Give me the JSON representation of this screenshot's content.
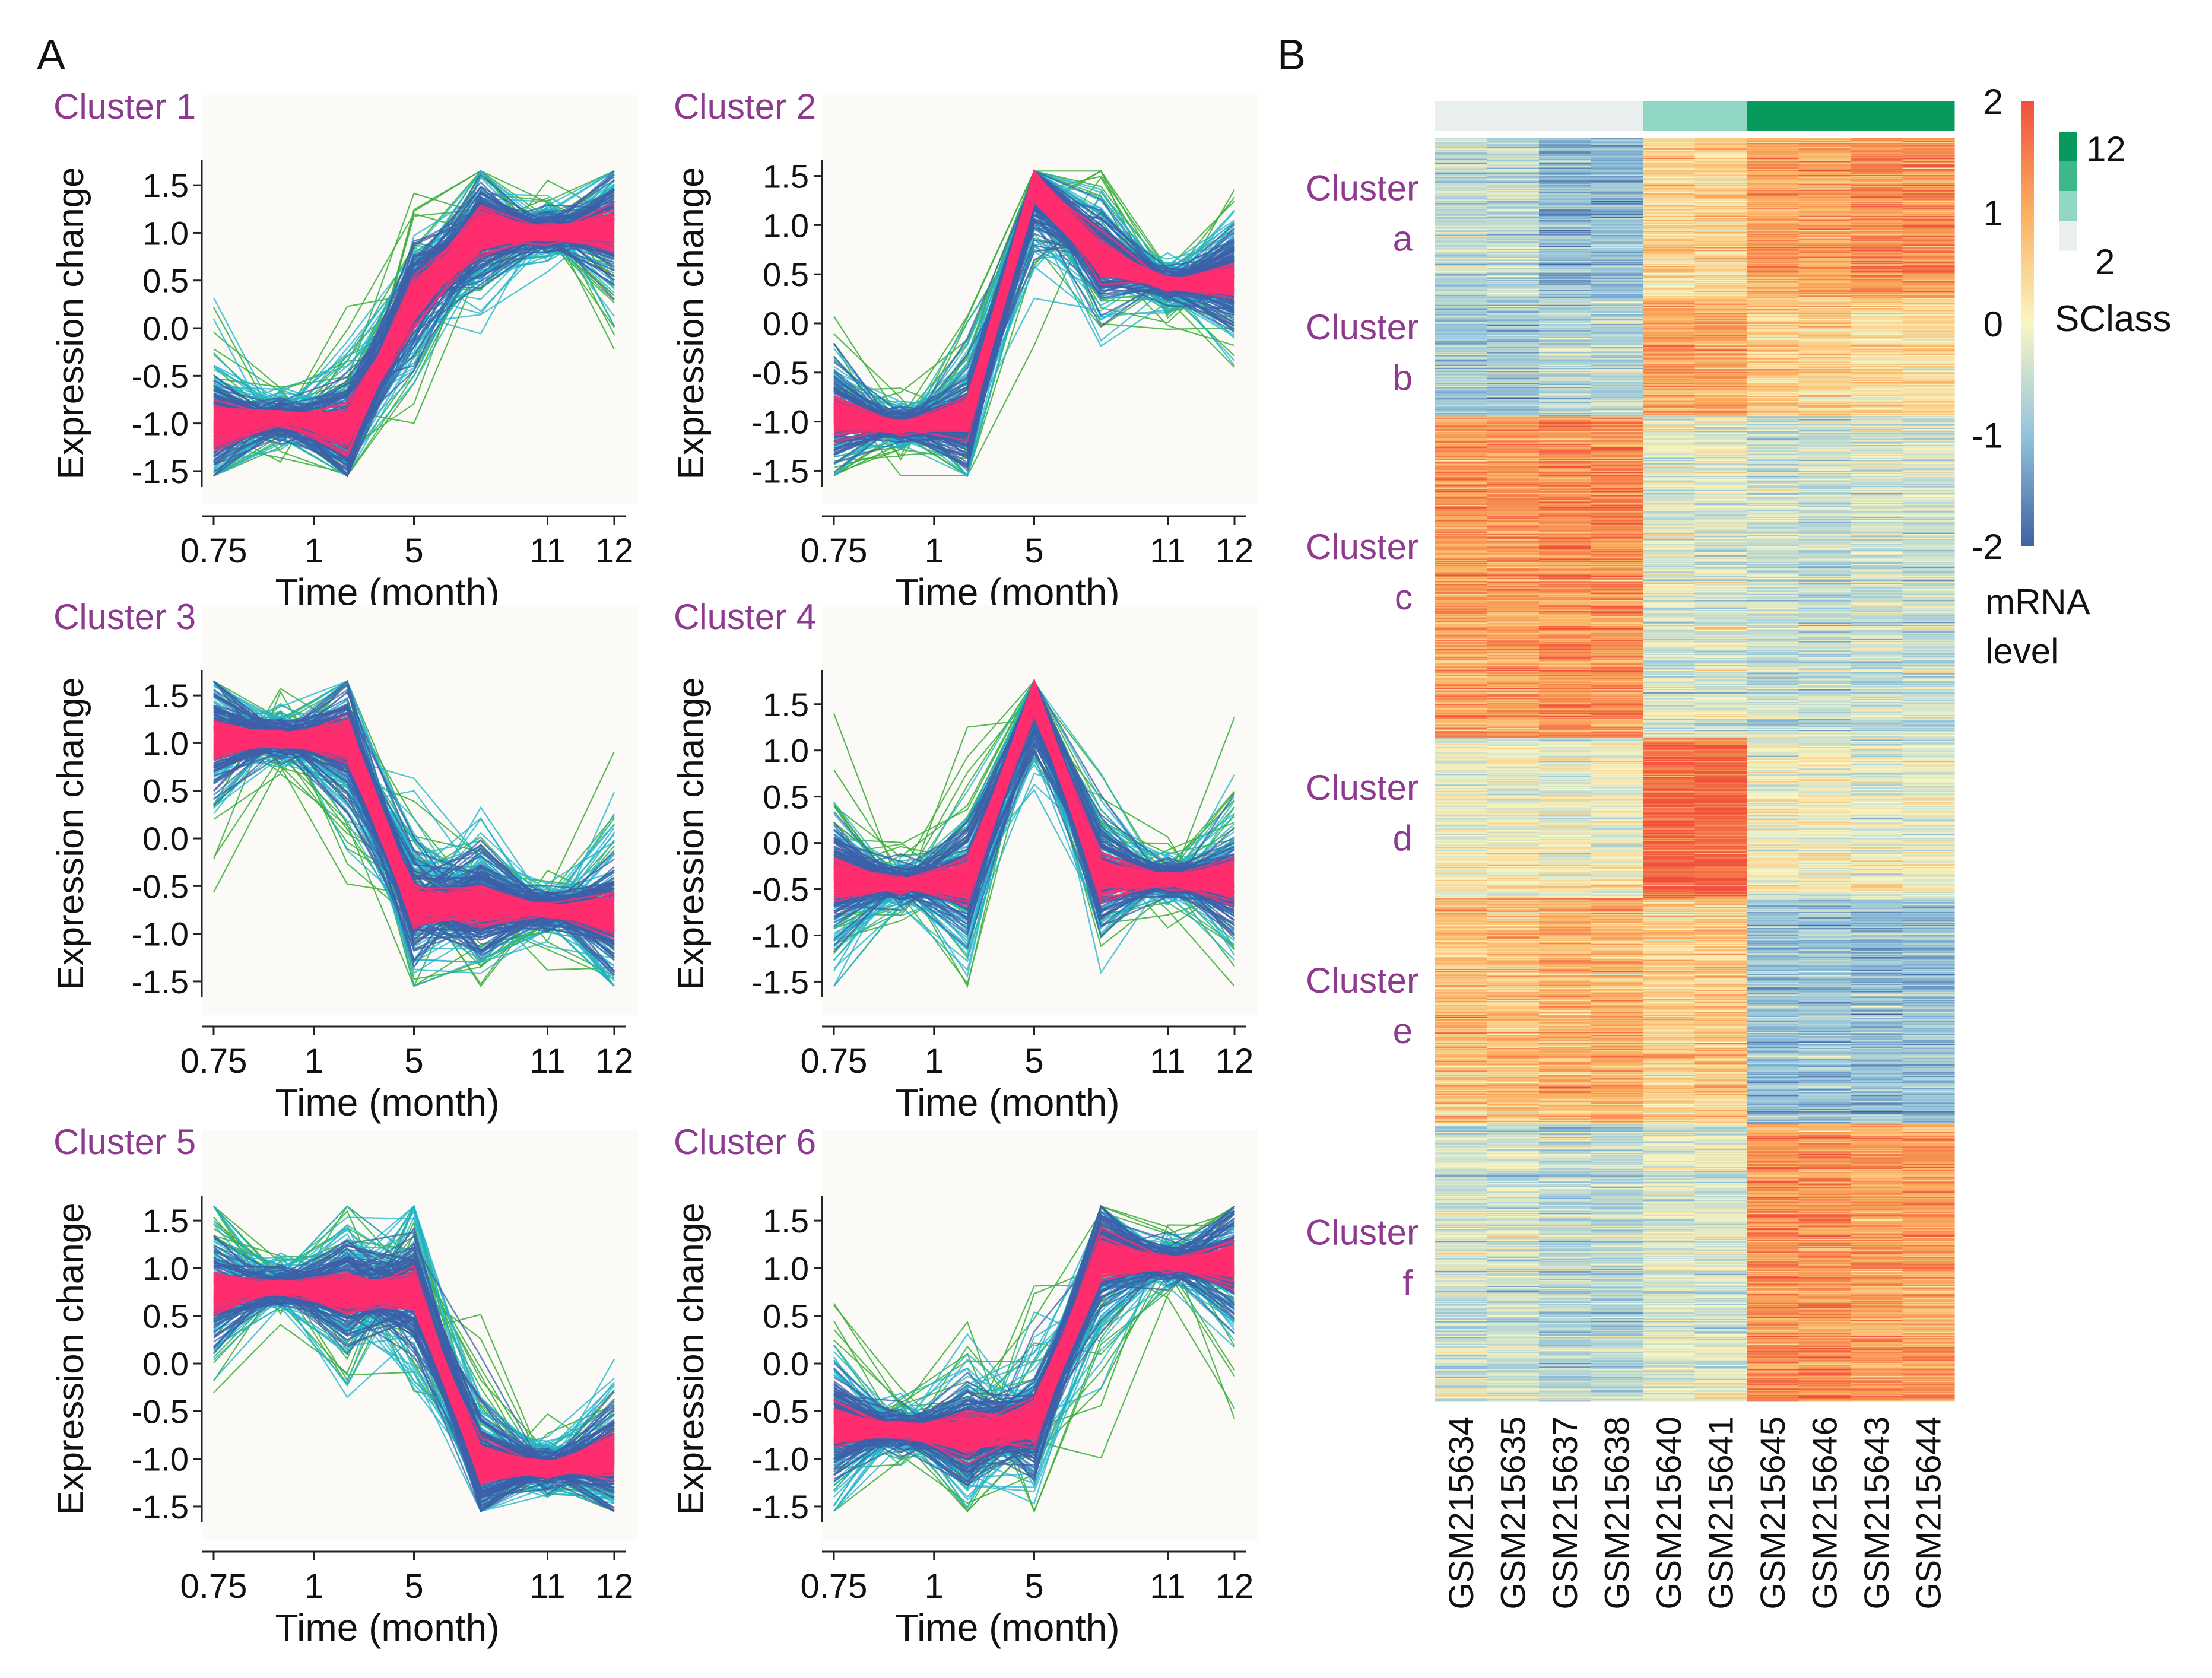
{
  "panel_labels": [
    "A",
    "B"
  ],
  "colors": {
    "cluster_title": "#8e3a8e",
    "line_green": "#3aae3a",
    "line_teal": "#1fb3c9",
    "line_blue": "#3d5fa8",
    "line_pink": "#ff2d6f",
    "plot_bg": "#fbfaf7"
  },
  "chart_data": [
    {
      "type": "line",
      "title": "Cluster 1",
      "xlabel": "Time (month)",
      "ylabel": "Expression change",
      "categories": [
        "0.75",
        "1",
        "5",
        "11",
        "12"
      ],
      "x": [
        0.75,
        1,
        5,
        11,
        12
      ],
      "yticks": [
        "1.5",
        "1.0",
        "0.5",
        "0.0",
        "-0.5",
        "-1.0",
        "-1.5"
      ],
      "ylim": [
        -1.6,
        1.7
      ],
      "profile": [
        -1.0,
        -0.95,
        -1.05,
        0.3,
        1.0,
        1.0,
        1.05
      ],
      "spread": 0.35
    },
    {
      "type": "line",
      "title": "Cluster 2",
      "xlabel": "Time (month)",
      "ylabel": "Expression change",
      "categories": [
        "0.75",
        "1",
        "5",
        "11",
        "12"
      ],
      "x": [
        0.75,
        1,
        5,
        11,
        12
      ],
      "yticks": [
        "1.5",
        "1.0",
        "0.5",
        "0.0",
        "-0.5",
        "-1.0",
        "-1.5"
      ],
      "ylim": [
        -1.6,
        1.6
      ],
      "profile": [
        -0.95,
        -1.05,
        -0.95,
        1.4,
        0.65,
        0.4,
        0.45
      ],
      "spread": 0.3
    },
    {
      "type": "line",
      "title": "Cluster 3",
      "xlabel": "Time (month)",
      "ylabel": "Expression change",
      "categories": [
        "0.75",
        "1",
        "5",
        "11",
        "12"
      ],
      "x": [
        0.75,
        1,
        5,
        11,
        12
      ],
      "yticks": [
        "1.5",
        "1.0",
        "0.5",
        "0.0",
        "-0.5",
        "-1.0",
        "-1.5"
      ],
      "ylim": [
        -1.6,
        1.7
      ],
      "profile": [
        1.05,
        1.05,
        1.0,
        -0.7,
        -0.7,
        -0.75,
        -0.8
      ],
      "spread": 0.35
    },
    {
      "type": "line",
      "title": "Cluster 4",
      "xlabel": "Time (month)",
      "ylabel": "Expression change",
      "categories": [
        "0.75",
        "1",
        "5",
        "11",
        "12"
      ],
      "x": [
        0.75,
        1,
        5,
        11,
        12
      ],
      "yticks": [
        "1.5",
        "1.0",
        "0.5",
        "0.0",
        "-0.5",
        "-1.0",
        "-1.5"
      ],
      "ylim": [
        -1.6,
        1.8
      ],
      "profile": [
        -0.4,
        -0.45,
        -0.4,
        1.6,
        -0.35,
        -0.4,
        -0.4
      ],
      "spread": 0.35
    },
    {
      "type": "line",
      "title": "Cluster 5",
      "xlabel": "Time (month)",
      "ylabel": "Expression change",
      "categories": [
        "0.75",
        "1",
        "5",
        "11",
        "12"
      ],
      "x": [
        0.75,
        1,
        5,
        11,
        12
      ],
      "yticks": [
        "1.5",
        "1.0",
        "0.5",
        "0.0",
        "-0.5",
        "-1.0",
        "-1.5"
      ],
      "ylim": [
        -1.6,
        1.7
      ],
      "profile": [
        0.75,
        0.8,
        0.75,
        0.75,
        -1.05,
        -1.1,
        -1.0
      ],
      "spread": 0.35
    },
    {
      "type": "line",
      "title": "Cluster 6",
      "xlabel": "Time (month)",
      "ylabel": "Expression change",
      "categories": [
        "0.75",
        "1",
        "5",
        "11",
        "12"
      ],
      "x": [
        0.75,
        1,
        5,
        11,
        12
      ],
      "yticks": [
        "1.5",
        "1.0",
        "0.5",
        "0.0",
        "-0.5",
        "-1.0",
        "-1.5"
      ],
      "ylim": [
        -1.6,
        1.7
      ],
      "profile": [
        -0.65,
        -0.7,
        -0.75,
        -0.6,
        1.1,
        1.05,
        1.05
      ],
      "spread": 0.35
    },
    {
      "type": "heatmap",
      "columns": [
        "GSM215634",
        "GSM215635",
        "GSM215637",
        "GSM215638",
        "GSM215640",
        "GSM215641",
        "GSM215645",
        "GSM215646",
        "GSM215643",
        "GSM215644"
      ],
      "sclass": [
        2,
        2,
        2,
        2,
        6,
        6,
        12,
        12,
        12,
        12
      ],
      "clusters": [
        {
          "label": "Cluster",
          "letter": "a",
          "rows": 150,
          "values": [
            -0.6,
            -0.6,
            -1.1,
            -1.1,
            0.45,
            0.45,
            1.05,
            1.05,
            1.25,
            1.25
          ]
        },
        {
          "label": "Cluster",
          "letter": "b",
          "rows": 110,
          "values": [
            -0.9,
            -0.9,
            -0.7,
            -0.7,
            1.05,
            1.05,
            0.55,
            0.55,
            0.35,
            0.35
          ]
        },
        {
          "label": "Cluster",
          "letter": "c",
          "rows": 300,
          "values": [
            1.15,
            1.15,
            1.3,
            1.3,
            -0.3,
            -0.3,
            -0.5,
            -0.5,
            -0.45,
            -0.45
          ]
        },
        {
          "label": "Cluster",
          "letter": "d",
          "rows": 150,
          "values": [
            -0.05,
            -0.05,
            -0.05,
            -0.05,
            1.75,
            1.75,
            -0.05,
            -0.05,
            -0.15,
            -0.15
          ]
        },
        {
          "label": "Cluster",
          "letter": "e",
          "rows": 210,
          "values": [
            0.75,
            0.75,
            0.95,
            0.95,
            0.65,
            0.65,
            -0.95,
            -0.95,
            -1.0,
            -1.0
          ]
        },
        {
          "label": "Cluster",
          "letter": "f",
          "rows": 260,
          "values": [
            -0.4,
            -0.4,
            -0.65,
            -0.65,
            -0.3,
            -0.3,
            1.3,
            1.3,
            1.15,
            1.15
          ]
        }
      ],
      "colorbar": {
        "ticks": [
          "2",
          "1",
          "0",
          "-1",
          "-2"
        ],
        "values": [
          2,
          1,
          0,
          -1,
          -2
        ],
        "title_line1": "mRNA",
        "title_line2": "level"
      },
      "sclass_legend": {
        "top": "12",
        "bottom": "2",
        "title": "SClass"
      }
    }
  ]
}
